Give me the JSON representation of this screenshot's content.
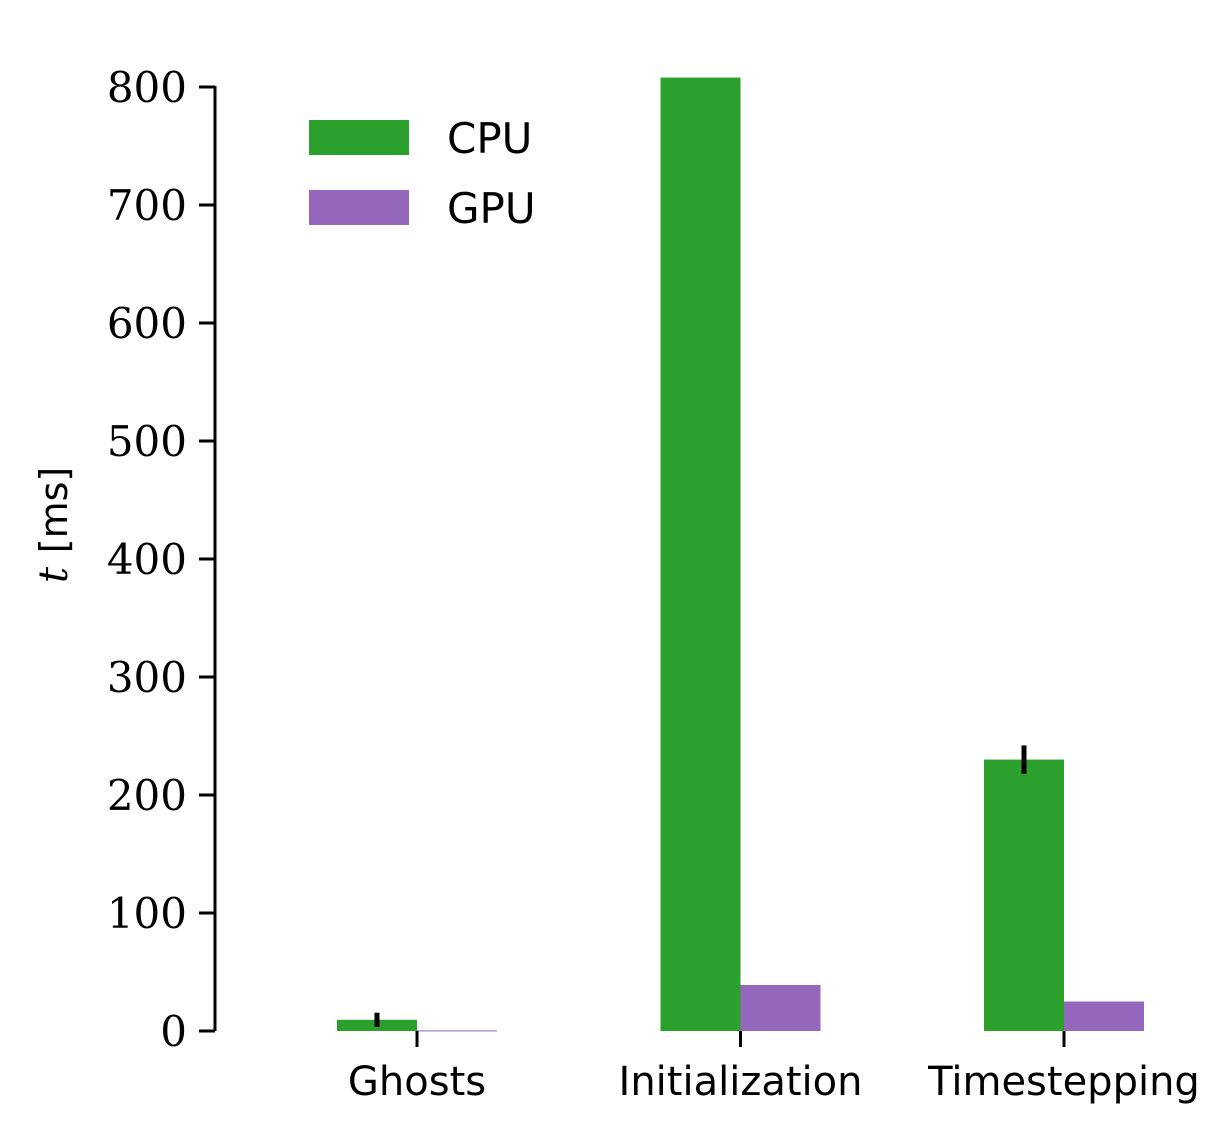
{
  "chart_data": {
    "type": "bar",
    "categories": [
      "Ghosts",
      "Initialization",
      "Timestepping"
    ],
    "series": [
      {
        "name": "CPU",
        "color": "#2ca02c",
        "values": [
          9.5,
          808,
          230
        ],
        "errors": [
          6,
          0,
          12
        ]
      },
      {
        "name": "GPU",
        "color": "#9467bd",
        "values": [
          0.5,
          39,
          25
        ],
        "errors": [
          0,
          0,
          0
        ]
      }
    ],
    "yticks": [
      0,
      100,
      200,
      300,
      400,
      500,
      600,
      700,
      800
    ],
    "ylim": [
      0,
      810
    ],
    "ylabel_symbol": "t",
    "ylabel_unit": "[ms]",
    "xlabel": "",
    "title": "",
    "legend_position": "top-left",
    "grid": false
  }
}
